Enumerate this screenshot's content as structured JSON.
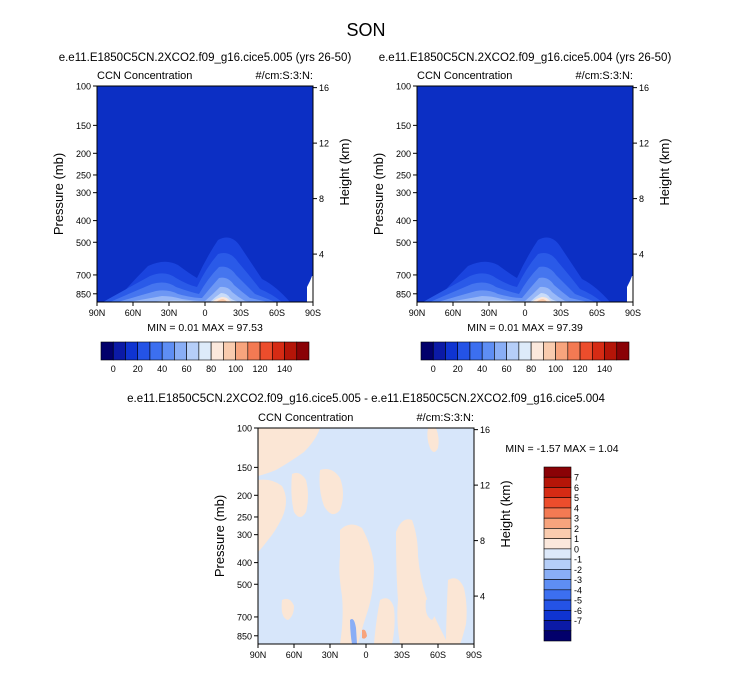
{
  "figure_title": "SON",
  "panels": [
    {
      "case_title": "e.e11.E1850C5CN.2XCO2.f09_g16.cice5.005 (yrs 26-50)",
      "left_label": "CCN Concentration",
      "right_label": "#/cm:S:3:N:",
      "stats": "MIN =  0.01  MAX = 97.53"
    },
    {
      "case_title": "e.e11.E1850C5CN.2XCO2.f09_g16.cice5.004 (yrs 26-50)",
      "left_label": "CCN Concentration",
      "right_label": "#/cm:S:3:N:",
      "stats": "MIN =  0.01  MAX = 97.39"
    },
    {
      "case_title": "e.e11.E1850C5CN.2XCO2.f09_g16.cice5.005 - e.e11.E1850C5CN.2XCO2.f09_g16.cice5.004",
      "left_label": "CCN Concentration",
      "right_label": "#/cm:S:3:N:",
      "stats": "MIN = -1.57  MAX =  1.04"
    }
  ],
  "axis_labels": {
    "left": "Pressure (mb)",
    "right": "Height (km)"
  },
  "colors": {
    "abs_scale": [
      "#02006b",
      "#0b1aa6",
      "#0f34d1",
      "#2453e6",
      "#3c6ff0",
      "#5e8ef4",
      "#89aef6",
      "#b5cef8",
      "#ddebfa",
      "#fbe8dc",
      "#f9cbae",
      "#f7a47d",
      "#f37a53",
      "#ec4d2c",
      "#d62b14",
      "#b51508",
      "#8a0206"
    ],
    "diff_scale": [
      "#02006b",
      "#0b1aa6",
      "#0f34d1",
      "#2453e6",
      "#3c6ff0",
      "#5e8ef4",
      "#89aef6",
      "#b5cef8",
      "#dde9fa",
      "#fbe8dc",
      "#f9cbae",
      "#f7a47d",
      "#f37a53",
      "#ec4d2c",
      "#d62b14",
      "#b51508",
      "#8a0206"
    ],
    "background_field": "#0c2fc4",
    "diff_neg": "#d7e6fa",
    "diff_pos": "#fbe6d5"
  },
  "chart_data": [
    {
      "type": "heatmap",
      "title": "e.e11.E1850C5CN.2XCO2.f09_g16.cice5.005 (yrs 26-50)",
      "xlabel": "",
      "ylabel": "Pressure (mb)",
      "y2label": "Height (km)",
      "x_ticks": [
        "90N",
        "60N",
        "30N",
        "0",
        "30S",
        "60S",
        "90S"
      ],
      "y_ticks": [
        100,
        150,
        200,
        250,
        300,
        400,
        500,
        700,
        850
      ],
      "y2_ticks": [
        4,
        8,
        12,
        16
      ],
      "ylim": [
        100,
        925
      ],
      "y_scale": "log",
      "min": 0.01,
      "max": 97.53,
      "colorbar_ticks": [
        0,
        20,
        40,
        60,
        80,
        100,
        120,
        140
      ]
    },
    {
      "type": "heatmap",
      "title": "e.e11.E1850C5CN.2XCO2.f09_g16.cice5.004 (yrs 26-50)",
      "xlabel": "",
      "ylabel": "Pressure (mb)",
      "y2label": "Height (km)",
      "x_ticks": [
        "90N",
        "60N",
        "30N",
        "0",
        "30S",
        "60S",
        "90S"
      ],
      "y_ticks": [
        100,
        150,
        200,
        250,
        300,
        400,
        500,
        700,
        850
      ],
      "y2_ticks": [
        4,
        8,
        12,
        16
      ],
      "ylim": [
        100,
        925
      ],
      "y_scale": "log",
      "min": 0.01,
      "max": 97.39,
      "colorbar_ticks": [
        0,
        20,
        40,
        60,
        80,
        100,
        120,
        140
      ]
    },
    {
      "type": "heatmap",
      "title": "e.e11.E1850C5CN.2XCO2.f09_g16.cice5.005 - e.e11.E1850C5CN.2XCO2.f09_g16.cice5.004",
      "xlabel": "",
      "ylabel": "Pressure (mb)",
      "y2label": "Height (km)",
      "x_ticks": [
        "90N",
        "60N",
        "30N",
        "0",
        "30S",
        "60S",
        "90S"
      ],
      "y_ticks": [
        100,
        150,
        200,
        250,
        300,
        400,
        500,
        700,
        850
      ],
      "y2_ticks": [
        4,
        8,
        12,
        16
      ],
      "ylim": [
        100,
        925
      ],
      "y_scale": "log",
      "min": -1.57,
      "max": 1.04,
      "colorbar_ticks": [
        7,
        6,
        5,
        4,
        3,
        2,
        1,
        0,
        -1,
        -2,
        -3,
        -4,
        -5,
        -6,
        -7
      ]
    }
  ]
}
